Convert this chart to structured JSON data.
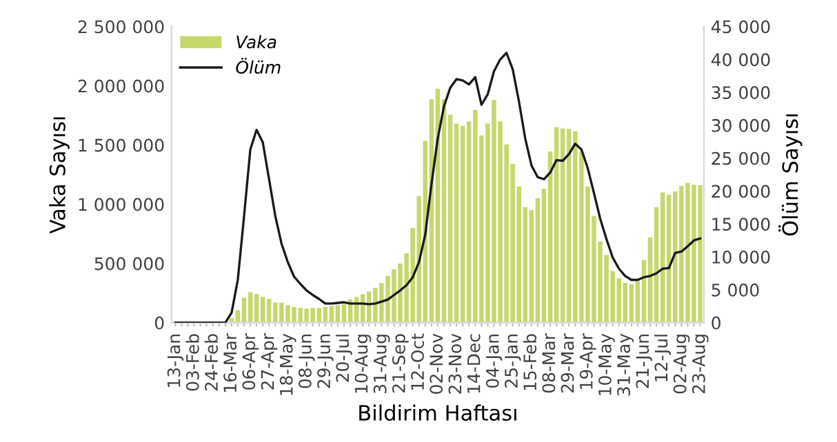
{
  "chart_data": {
    "type": "bar",
    "categories": [
      "13-Jan",
      null,
      null,
      "03-Feb",
      null,
      null,
      "24-Feb",
      null,
      null,
      "16-Mar",
      null,
      null,
      "06-Apr",
      null,
      null,
      "27-Apr",
      null,
      null,
      "18-May",
      null,
      null,
      "08-Jun",
      null,
      null,
      "29-Jun",
      null,
      null,
      "20-Jul",
      null,
      null,
      "10-Aug",
      null,
      null,
      "31-Aug",
      null,
      null,
      "21-Sep",
      null,
      null,
      "12-Oct",
      null,
      null,
      "02-Nov",
      null,
      null,
      "23-Nov",
      null,
      null,
      "14-Dec",
      null,
      null,
      "04-Jan",
      null,
      null,
      "25-Jan",
      null,
      null,
      "15-Feb",
      null,
      null,
      "08-Mar",
      null,
      null,
      "29-Mar",
      null,
      null,
      "19-Apr",
      null,
      null,
      "10-May",
      null,
      null,
      "31-May",
      null,
      null,
      "21-Jun",
      null,
      null,
      "12-Jul",
      null,
      null,
      "02-Aug",
      null,
      null,
      "23-Aug"
    ],
    "series": [
      {
        "name": "Vaka",
        "color": "#c5d86d",
        "values": [
          0,
          0,
          0,
          0,
          0,
          0,
          0,
          0,
          0,
          38000,
          105000,
          210000,
          256000,
          240000,
          218000,
          200000,
          170000,
          170000,
          148000,
          132000,
          125000,
          118000,
          125000,
          125000,
          132000,
          140000,
          148000,
          155000,
          195000,
          218000,
          240000,
          262000,
          295000,
          333000,
          395000,
          450000,
          500000,
          585000,
          800000,
          1070000,
          1535000,
          1885000,
          1975000,
          1885000,
          1755000,
          1680000,
          1660000,
          1700000,
          1795000,
          1580000,
          1680000,
          1880000,
          1700000,
          1505000,
          1340000,
          1150000,
          975000,
          950000,
          1050000,
          1130000,
          1445000,
          1650000,
          1640000,
          1635000,
          1615000,
          1445000,
          1150000,
          900000,
          685000,
          570000,
          435000,
          375000,
          335000,
          325000,
          355000,
          530000,
          720000,
          975000,
          1100000,
          1080000,
          1110000,
          1155000,
          1180000,
          1165000,
          1160000
        ]
      },
      {
        "name": "Ölüm",
        "type": "line",
        "axis": "y2",
        "color": "#1a1a1a",
        "values": [
          0,
          0,
          0,
          0,
          0,
          0,
          0,
          0,
          0,
          1500,
          6500,
          16200,
          26300,
          29300,
          27400,
          21800,
          16200,
          12000,
          9200,
          7000,
          5900,
          4900,
          4200,
          3600,
          2900,
          2900,
          3000,
          3100,
          2900,
          2900,
          2900,
          2800,
          2900,
          3200,
          3500,
          4200,
          4900,
          5700,
          6900,
          9200,
          13400,
          21100,
          28000,
          32900,
          35700,
          37000,
          36800,
          36200,
          37300,
          33100,
          34700,
          38200,
          40000,
          41000,
          38500,
          33600,
          28000,
          23900,
          22100,
          21800,
          22800,
          24700,
          24600,
          25600,
          27200,
          26300,
          23500,
          19700,
          15800,
          12700,
          9900,
          8200,
          7100,
          6500,
          6500,
          6900,
          7100,
          7500,
          8200,
          8300,
          10600,
          10800,
          11600,
          12500,
          12800
        ]
      }
    ],
    "xlabel": "Bildirim Haftası",
    "ylabel": "Vaka Sayısı",
    "y2label": "Ölüm Sayısı",
    "ylim": [
      0,
      2500000
    ],
    "yticks": [
      0,
      {
        "value": 500000,
        "label": "500 000"
      },
      {
        "value": 1000000,
        "label": "1 000 000"
      },
      {
        "value": 1500000,
        "label": "1 500 000"
      },
      {
        "value": 2000000,
        "label": "2 000 000"
      },
      {
        "value": 2500000,
        "label": "2 500 000"
      }
    ],
    "y2lim": [
      0,
      45000
    ],
    "y2ticks": [
      0,
      {
        "value": 5000,
        "label": "5 000"
      },
      {
        "value": 10000,
        "label": "10 000"
      },
      {
        "value": 15000,
        "label": "15 000"
      },
      {
        "value": 20000,
        "label": "20 000"
      },
      {
        "value": 25000,
        "label": "25 000"
      },
      {
        "value": 30000,
        "label": "30 000"
      },
      {
        "value": 35000,
        "label": "35 000"
      },
      {
        "value": 40000,
        "label": "40 000"
      },
      {
        "value": 45000,
        "label": "45 000"
      }
    ],
    "legend": "top left",
    "grid": false
  }
}
